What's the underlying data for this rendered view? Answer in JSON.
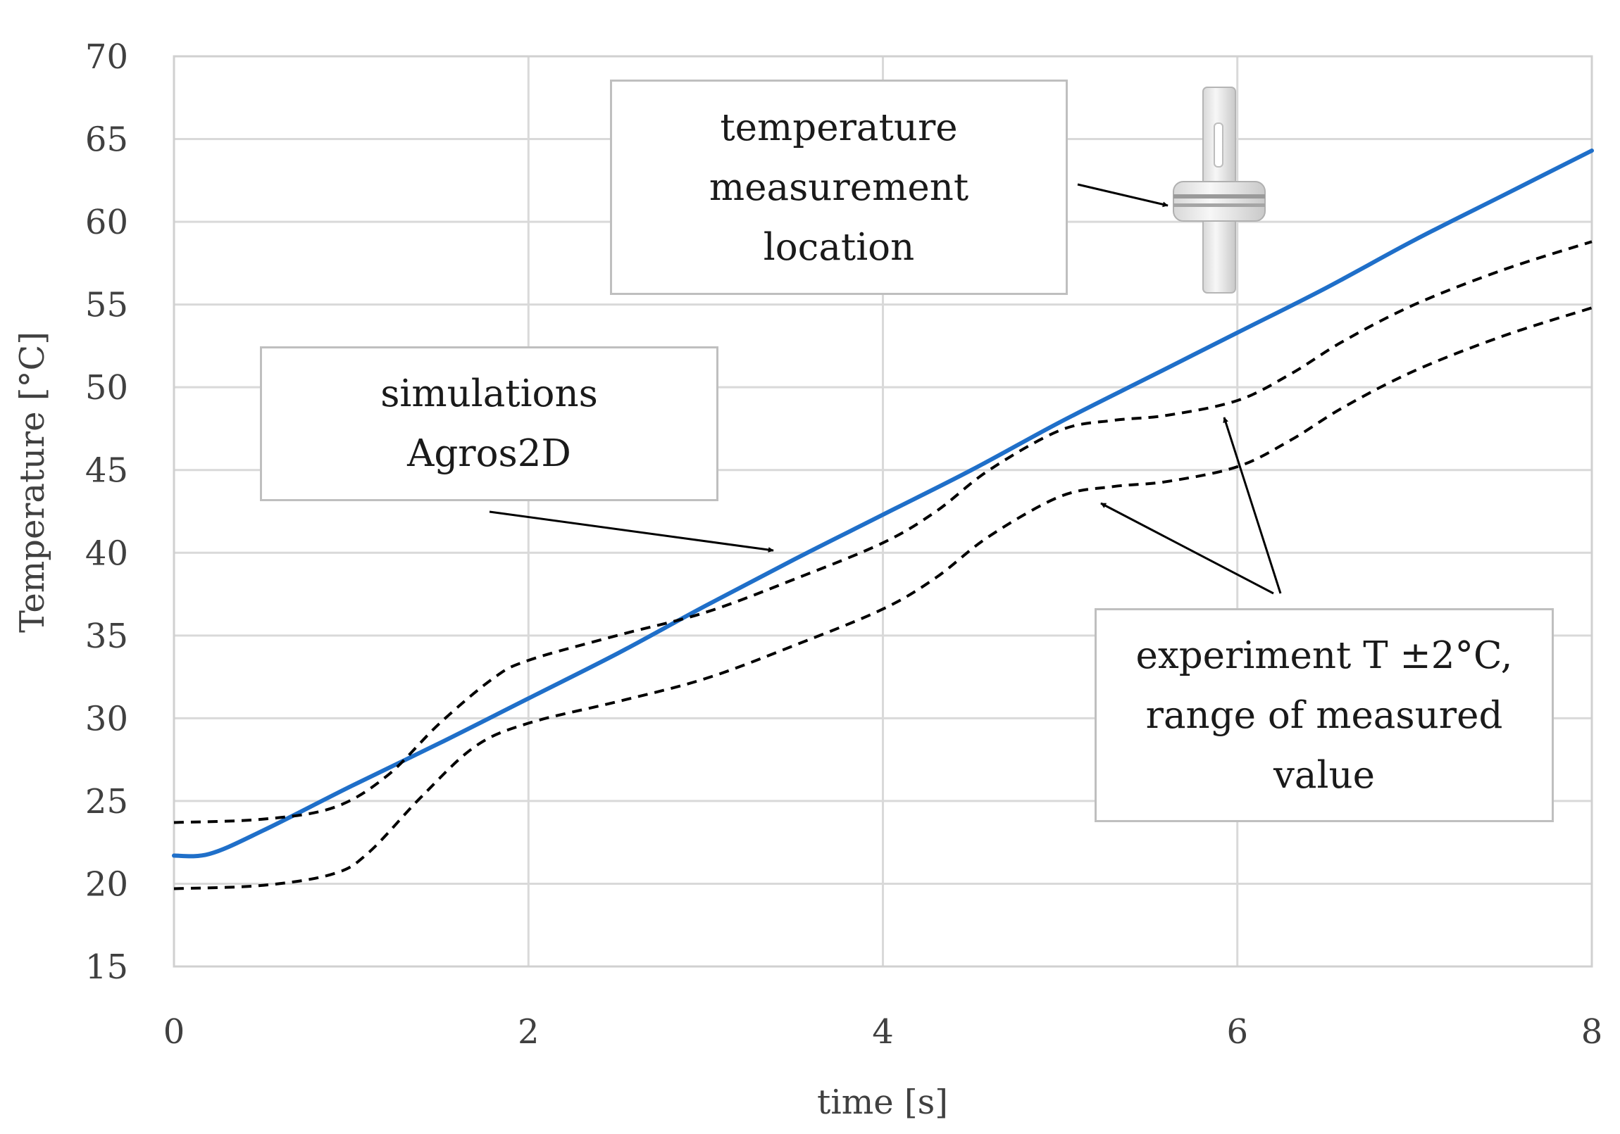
{
  "chart_data": {
    "type": "line",
    "title": "",
    "xlabel": "time [s]",
    "ylabel": "Temperature [°C]",
    "xlim": [
      0,
      8
    ],
    "ylim": [
      15,
      70
    ],
    "xticks": [
      0,
      2,
      4,
      6,
      8
    ],
    "yticks": [
      15,
      20,
      25,
      30,
      35,
      40,
      45,
      50,
      55,
      60,
      65,
      70
    ],
    "grid": true,
    "series": [
      {
        "name": "simulations Agros2D",
        "style": "solid",
        "color": "#1f6fc9",
        "x": [
          0,
          0.2,
          0.5,
          1.0,
          1.5,
          2.0,
          2.5,
          3.0,
          3.5,
          4.0,
          4.5,
          5.0,
          5.5,
          6.0,
          6.5,
          7.0,
          7.5,
          8.0
        ],
        "y": [
          21.7,
          21.8,
          23.2,
          25.9,
          28.5,
          31.2,
          33.9,
          36.8,
          39.6,
          42.3,
          45.0,
          47.9,
          50.6,
          53.3,
          56.0,
          58.9,
          61.6,
          64.3
        ]
      },
      {
        "name": "experiment T +2°C",
        "style": "dashed",
        "color": "#000000",
        "x": [
          0,
          0.5,
          0.9,
          1.2,
          1.5,
          1.8,
          2.0,
          2.5,
          3.0,
          3.5,
          4.0,
          4.3,
          4.6,
          5.0,
          5.3,
          5.6,
          6.0,
          6.3,
          6.6,
          7.0,
          7.5,
          8.0
        ],
        "y": [
          23.7,
          23.9,
          24.6,
          26.5,
          29.7,
          32.4,
          33.5,
          35.0,
          36.4,
          38.4,
          40.6,
          42.5,
          45.0,
          47.4,
          48.0,
          48.3,
          49.2,
          50.8,
          52.8,
          55.0,
          57.1,
          58.8
        ]
      },
      {
        "name": "experiment T -2°C",
        "style": "dashed",
        "color": "#000000",
        "x": [
          0,
          0.5,
          0.9,
          1.1,
          1.4,
          1.7,
          2.0,
          2.5,
          3.0,
          3.5,
          4.0,
          4.3,
          4.6,
          5.0,
          5.3,
          5.6,
          6.0,
          6.3,
          6.6,
          7.0,
          7.5,
          8.0
        ],
        "y": [
          19.7,
          19.9,
          20.6,
          21.9,
          25.3,
          28.3,
          29.7,
          31.0,
          32.4,
          34.4,
          36.6,
          38.5,
          41.0,
          43.4,
          44.0,
          44.3,
          45.2,
          46.8,
          48.8,
          51.0,
          53.1,
          54.8
        ]
      }
    ],
    "annotations": [
      {
        "lines": [
          "temperature",
          "measurement",
          "location"
        ]
      },
      {
        "lines": [
          "simulations",
          "Agros2D"
        ]
      },
      {
        "lines": [
          "experiment T ±2°C,",
          "range of measured",
          "value"
        ]
      }
    ]
  }
}
